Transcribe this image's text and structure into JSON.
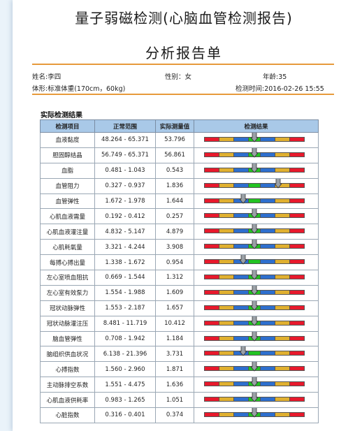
{
  "header": {
    "title": "量子弱磁检测(心脑血管检测报告)",
    "subtitle": "分析报告单"
  },
  "patient": {
    "name": "姓名:李四",
    "gender": "性别：女",
    "age": "年龄:35",
    "body": "体形:标准体重(170cm，60kg)",
    "time": "检测时间:2016-02-26 15:55"
  },
  "section_title": "实际检测结果",
  "table": {
    "columns": [
      "检测项目",
      "正常范围",
      "实际测量值",
      "检测结果"
    ],
    "rows": [
      {
        "item": "血液黏度",
        "range": "48.264 - 65.371",
        "value": "53.796",
        "level": 0.5
      },
      {
        "item": "胆固醇结晶",
        "range": "56.749 - 65.371",
        "value": "56.861",
        "level": 0.5
      },
      {
        "item": "血脂",
        "range": "0.481 - 1.043",
        "value": "0.543",
        "level": 0.5
      },
      {
        "item": "血管阻力",
        "range": "0.327 - 0.937",
        "value": "1.836",
        "level": 0.74
      },
      {
        "item": "血管弹性",
        "range": "1.672 - 1.978",
        "value": "1.644",
        "level": 0.39
      },
      {
        "item": "心肌血液需量",
        "range": "0.192 - 0.412",
        "value": "0.257",
        "level": 0.5
      },
      {
        "item": "心肌血液灌注量",
        "range": "4.832 - 5.147",
        "value": "4.879",
        "level": 0.5
      },
      {
        "item": "心肌耗氧量",
        "range": "3.321 - 4.244",
        "value": "3.908",
        "level": 0.5
      },
      {
        "item": "每搏心搏出量",
        "range": "1.338 - 1.672",
        "value": "0.954",
        "level": 0.39
      },
      {
        "item": "左心室喷血阻抗",
        "range": "0.669 - 1.544",
        "value": "1.312",
        "level": 0.5
      },
      {
        "item": "左心室有效泵力",
        "range": "1.554 - 1.988",
        "value": "1.609",
        "level": 0.5
      },
      {
        "item": "冠状动脉弹性",
        "range": "1.553 - 2.187",
        "value": "1.657",
        "level": 0.5
      },
      {
        "item": "冠状动脉灌注压",
        "range": "8.481 - 11.719",
        "value": "10.412",
        "level": 0.5
      },
      {
        "item": "脑血管弹性",
        "range": "0.708 - 1.942",
        "value": "1.184",
        "level": 0.5
      },
      {
        "item": "脑组织供血状况",
        "range": "6.138 - 21.396",
        "value": "3.731",
        "level": 0.39
      },
      {
        "item": "心搏指数",
        "range": "1.560 - 2.960",
        "value": "1.871",
        "level": 0.5
      },
      {
        "item": "主动脉排空系数",
        "range": "1.551 - 4.475",
        "value": "1.636",
        "level": 0.5
      },
      {
        "item": "心肌血液供耗率",
        "range": "0.983 - 1.265",
        "value": "1.051",
        "level": 0.5
      },
      {
        "item": "心脏指数",
        "range": "0.316 - 0.401",
        "value": "0.374",
        "level": 0.5
      }
    ]
  },
  "bar_colors": [
    "#e8192c",
    "#e0b030",
    "#2e6fce",
    "#22c322",
    "#2e6fce",
    "#e0b030",
    "#e8192c"
  ],
  "marker_color": "#9aa0a6",
  "accent_line_color": "#e79a3b"
}
